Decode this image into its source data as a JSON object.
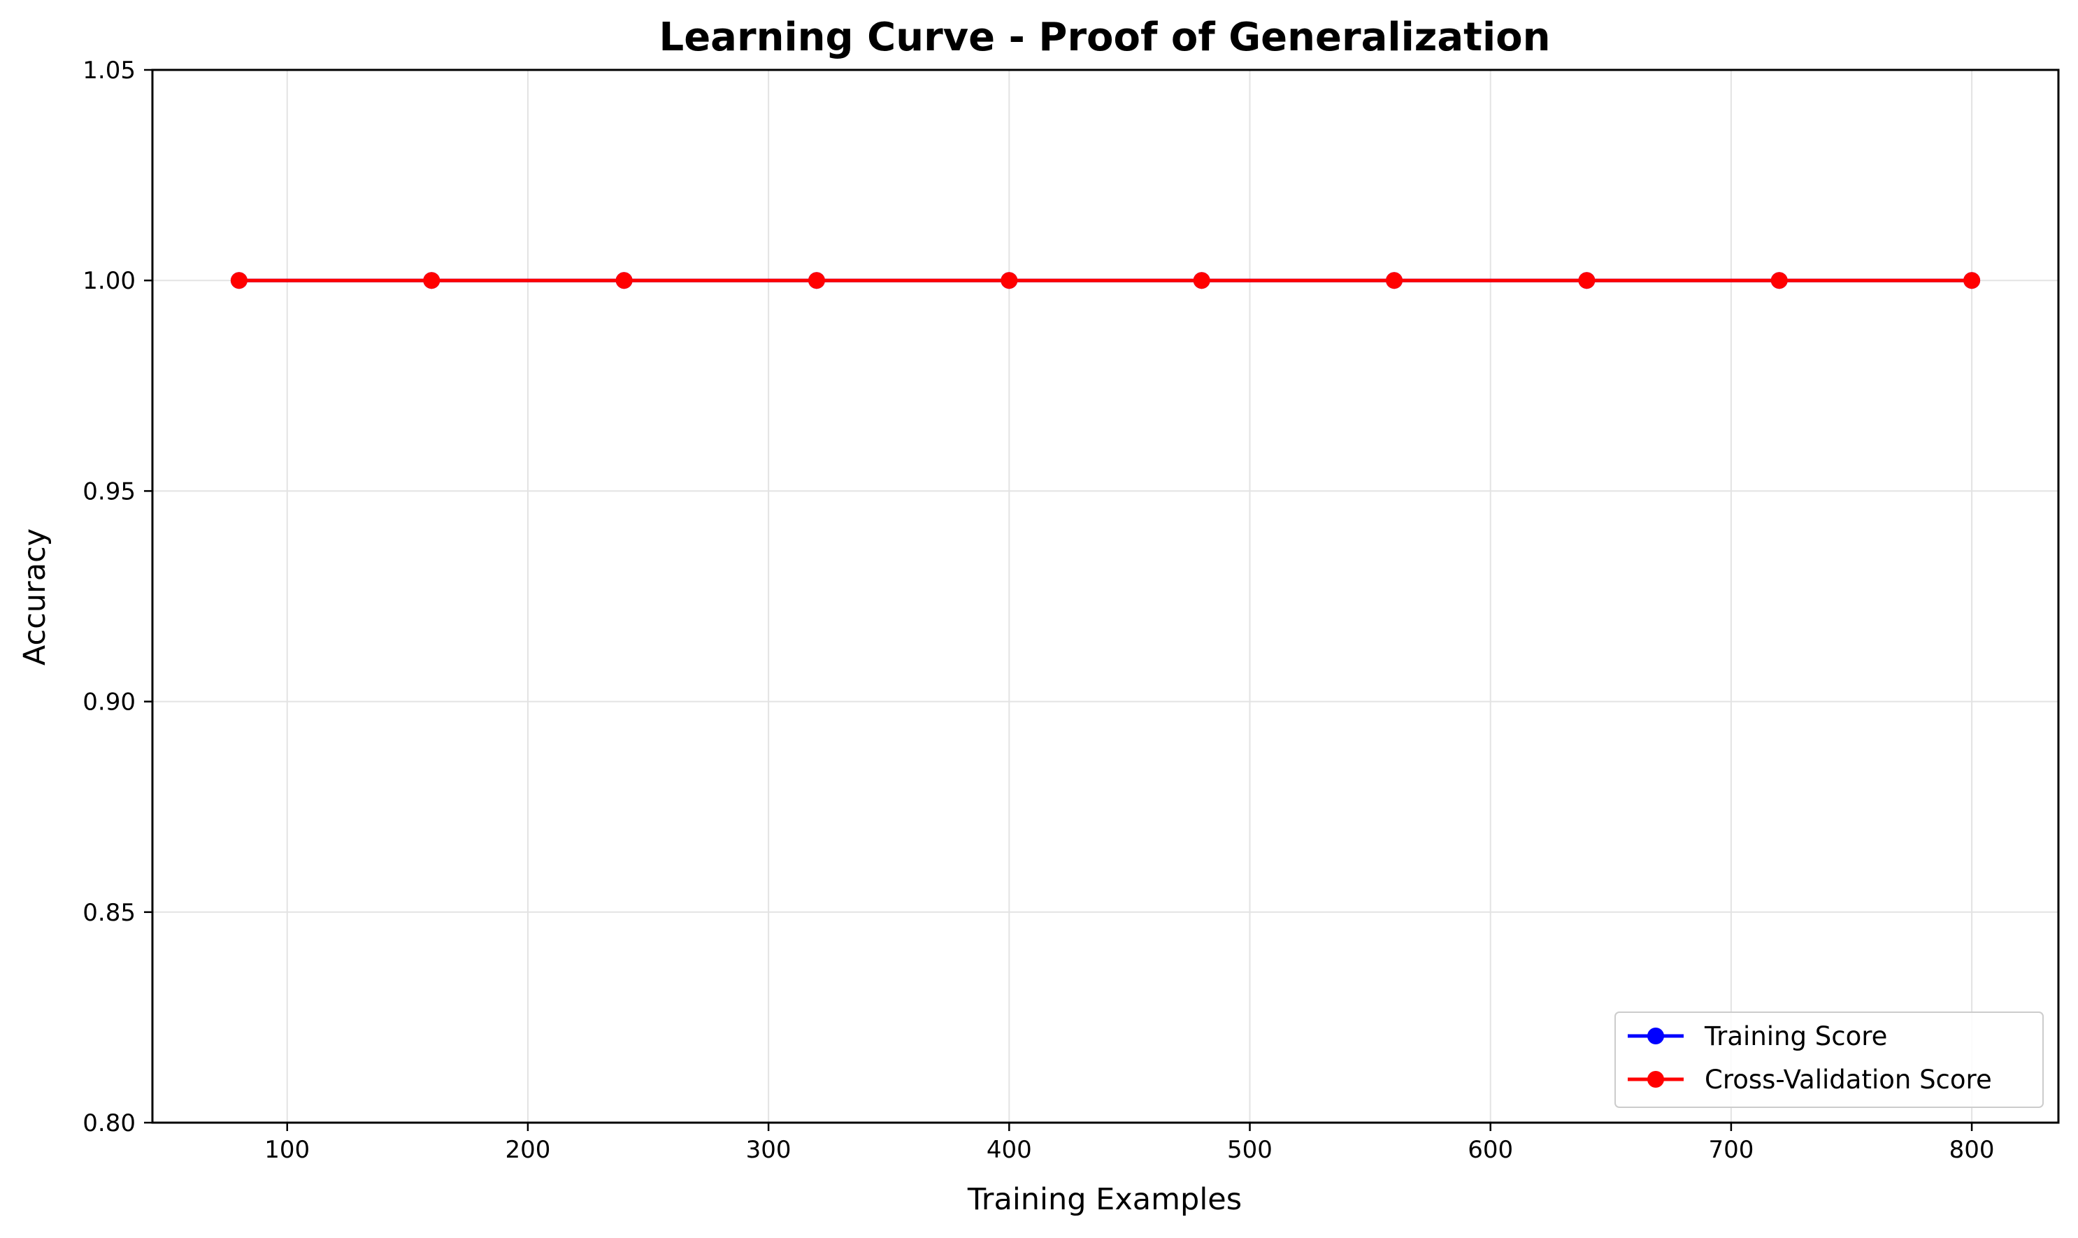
{
  "chart_data": {
    "type": "line",
    "title": "Learning Curve - Proof of Generalization",
    "xlabel": "Training Examples",
    "ylabel": "Accuracy",
    "xlim": [
      44,
      836
    ],
    "ylim": [
      0.8,
      1.05
    ],
    "xticks": [
      100,
      200,
      300,
      400,
      500,
      600,
      700,
      800
    ],
    "yticks": [
      0.8,
      0.85,
      0.9,
      0.95,
      1.0,
      1.05
    ],
    "xtick_labels": [
      "100",
      "200",
      "300",
      "400",
      "500",
      "600",
      "700",
      "800"
    ],
    "ytick_labels": [
      "0.80",
      "0.85",
      "0.90",
      "0.95",
      "1.00",
      "1.05"
    ],
    "grid": true,
    "legend_position": "lower-right",
    "x": [
      80,
      160,
      240,
      320,
      400,
      480,
      560,
      640,
      720,
      800
    ],
    "series": [
      {
        "name": "Training Score",
        "color": "#0000ff",
        "values": [
          1.0,
          1.0,
          1.0,
          1.0,
          1.0,
          1.0,
          1.0,
          1.0,
          1.0,
          1.0
        ]
      },
      {
        "name": "Cross-Validation Score",
        "color": "#ff0000",
        "values": [
          1.0,
          1.0,
          1.0,
          1.0,
          1.0,
          1.0,
          1.0,
          1.0,
          1.0,
          1.0
        ]
      }
    ]
  }
}
